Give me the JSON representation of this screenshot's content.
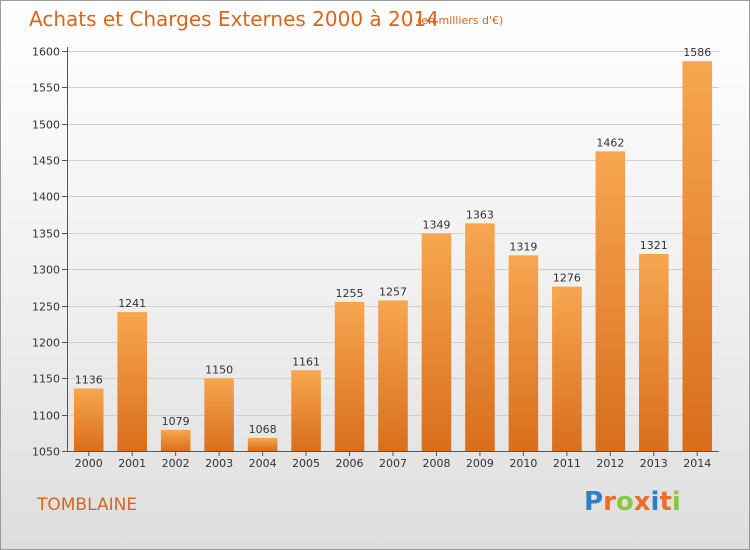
{
  "title": "Achats et Charges Externes 2000 à 2014",
  "unit_note": "(en milliers d'€)",
  "commune": "TOMBLAINE",
  "logo": {
    "text": "Proxiti",
    "letter_colors": [
      "#2f7fc8",
      "#e8702a",
      "#8cc63f",
      "#e8702a",
      "#2f7fc8",
      "#e8702a",
      "#8cc63f"
    ]
  },
  "colors": {
    "accent": "#d9651d",
    "bar_top": "#f7a650",
    "bar_bottom": "#d96e1c",
    "grid": "#d0d0d0"
  },
  "chart_data": {
    "type": "bar",
    "categories": [
      "2000",
      "2001",
      "2002",
      "2003",
      "2004",
      "2005",
      "2006",
      "2007",
      "2008",
      "2009",
      "2010",
      "2011",
      "2012",
      "2013",
      "2014"
    ],
    "values": [
      1136,
      1241,
      1079,
      1150,
      1068,
      1161,
      1255,
      1257,
      1349,
      1363,
      1319,
      1276,
      1462,
      1321,
      1586
    ],
    "ylim": [
      1050,
      1600
    ],
    "yticks": [
      1050,
      1100,
      1150,
      1200,
      1250,
      1300,
      1350,
      1400,
      1450,
      1500,
      1550,
      1600
    ],
    "grid": true,
    "data_labels": true
  }
}
